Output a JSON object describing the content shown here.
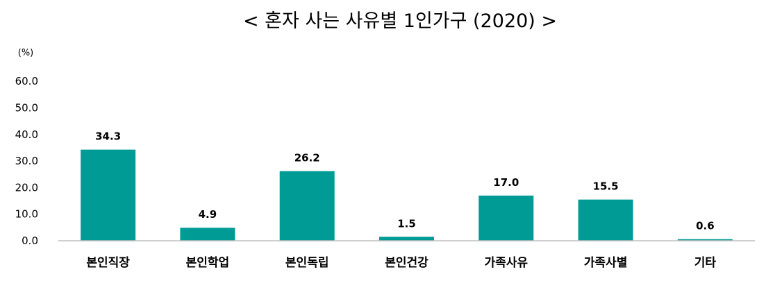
{
  "chart_data": {
    "type": "bar",
    "title": "< 혼자 사는 사유별 1인가구 (2020) >",
    "unit": "(%)",
    "categories": [
      "본인직장",
      "본인학업",
      "본인독립",
      "본인건강",
      "가족사유",
      "가족사별",
      "기타"
    ],
    "values": [
      34.3,
      4.9,
      26.2,
      1.5,
      17.0,
      15.5,
      0.6
    ],
    "value_labels": [
      "34.3",
      "4.9",
      "26.2",
      "1.5",
      "17.0",
      "15.5",
      "0.6"
    ],
    "yticks": [
      "0.0",
      "10.0",
      "20.0",
      "30.0",
      "40.0",
      "50.0",
      "60.0"
    ],
    "ylim": [
      0,
      60
    ],
    "grid": false,
    "legend": "none",
    "bar_color": "#009B94"
  }
}
